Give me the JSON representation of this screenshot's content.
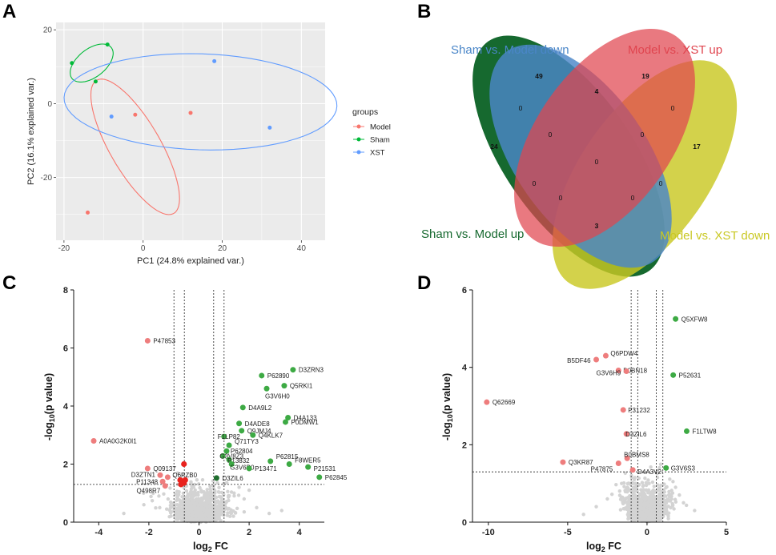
{
  "panels": {
    "a": "A",
    "b": "B",
    "c": "C",
    "d": "D"
  },
  "colors": {
    "model": "#F8766D",
    "sham": "#00BA38",
    "xst": "#619CFF",
    "venn_blue": "#4A86C8",
    "venn_red": "#E0454F",
    "venn_dkgreen": "#16692F",
    "venn_yellow": "#C9C823",
    "sig_up": "#3DAA44",
    "sig_down": "#EE7D7D",
    "sig_dkgreen": "#1F6E2E",
    "sig_red": "#E8231E",
    "nonsig": "#D3D3D3",
    "pca_bg": "#EBEBEB"
  },
  "chart_data": [
    {
      "id": "pca",
      "type": "scatter",
      "xlabel": "PC1 (24.8% explained var.)",
      "ylabel": "PC2 (16.1% explained var.)",
      "xlim": [
        -22,
        46
      ],
      "ylim": [
        -37,
        22
      ],
      "xticks": [
        -20,
        0,
        20,
        40
      ],
      "yticks": [
        -20,
        0,
        20
      ],
      "legend_title": "groups",
      "legend_position": "right",
      "grid": true,
      "series": [
        {
          "name": "Model",
          "points": [
            [
              -14,
              -29.5
            ],
            [
              -2,
              -3
            ],
            [
              12,
              -2.5
            ]
          ],
          "ellipse": {
            "cx": -2,
            "cy": -11.7,
            "rx": 20.5,
            "ry": 6.5,
            "angle_deg": 118
          }
        },
        {
          "name": "Sham",
          "points": [
            [
              -18,
              11
            ],
            [
              -9,
              16
            ],
            [
              -12,
              6
            ]
          ],
          "ellipse": {
            "cx": -13,
            "cy": 11,
            "rx": 6.5,
            "ry": 3.7,
            "angle_deg": 42
          }
        },
        {
          "name": "XST",
          "points": [
            [
              -8,
              -3.5
            ],
            [
              18,
              11.5
            ],
            [
              32,
              -6.5
            ]
          ],
          "ellipse": {
            "cx": 14.5,
            "cy": 0.5,
            "rx": 34.5,
            "ry": 13,
            "angle_deg": -2
          }
        }
      ]
    },
    {
      "id": "venn",
      "type": "venn",
      "sets": [
        "Sham vs. Model down",
        "Model vs. XST up",
        "Sham vs. Model up",
        "Model vs. XST down"
      ],
      "counts": [
        {
          "value": "49",
          "bold": true
        },
        {
          "value": "19",
          "bold": true
        },
        {
          "value": "24",
          "bold": true
        },
        {
          "value": "17",
          "bold": true
        },
        {
          "value": "4",
          "bold": true
        },
        {
          "value": "3",
          "bold": true
        },
        {
          "value": "0",
          "bold": false
        },
        {
          "value": "0",
          "bold": false
        },
        {
          "value": "0",
          "bold": false
        },
        {
          "value": "0",
          "bold": false
        },
        {
          "value": "0",
          "bold": false
        },
        {
          "value": "0",
          "bold": false
        },
        {
          "value": "0",
          "bold": false
        },
        {
          "value": "0",
          "bold": false
        },
        {
          "value": "0",
          "bold": false
        }
      ]
    },
    {
      "id": "volcano_c",
      "type": "scatter",
      "xlabel_main": "log",
      "xlabel_sub": "2",
      "xlabel_tail": " FC",
      "ylabel_pre": "-log",
      "ylabel_sub": "10",
      "ylabel_tail": "(p value)",
      "xlim": [
        -5,
        5
      ],
      "ylim": [
        0,
        8
      ],
      "xticks": [
        -4,
        -2,
        0,
        2,
        4
      ],
      "yticks": [
        0,
        2,
        4,
        6,
        8
      ],
      "thresholds": {
        "fc": [
          -1,
          -0.585,
          0.585,
          1
        ],
        "p": 1.3
      },
      "labeled_points": [
        {
          "label": "P47853",
          "x": -2.05,
          "y": 6.25,
          "cls": "down"
        },
        {
          "label": "A0A0G2K0I1",
          "x": -4.2,
          "y": 2.8,
          "cls": "down"
        },
        {
          "label": "Q09137",
          "x": -2.05,
          "y": 1.85,
          "cls": "down"
        },
        {
          "label": "D3ZTN1",
          "x": -1.55,
          "y": 1.62,
          "cls": "down"
        },
        {
          "label": "Q6PZB0",
          "x": -1.25,
          "y": 1.55,
          "cls": "down"
        },
        {
          "label": "P11348",
          "x": -1.45,
          "y": 1.4,
          "cls": "down"
        },
        {
          "label": "Q498R7",
          "x": -1.35,
          "y": 1.25,
          "cls": "down"
        },
        {
          "label": "D3ZRN3",
          "x": 3.75,
          "y": 5.25,
          "cls": "up"
        },
        {
          "label": "P62890",
          "x": 2.5,
          "y": 5.05,
          "cls": "up"
        },
        {
          "label": "Q5RKI1",
          "x": 3.4,
          "y": 4.7,
          "cls": "up"
        },
        {
          "label": "G3V6H0",
          "x": 2.7,
          "y": 4.6,
          "cls": "up"
        },
        {
          "label": "D4A9L2",
          "x": 1.75,
          "y": 3.95,
          "cls": "up"
        },
        {
          "label": "D4A133",
          "x": 3.55,
          "y": 3.6,
          "cls": "up"
        },
        {
          "label": "P0DMW1",
          "x": 3.45,
          "y": 3.45,
          "cls": "up"
        },
        {
          "label": "D4ADE8",
          "x": 1.6,
          "y": 3.4,
          "cls": "up"
        },
        {
          "label": "Q9JMJ4",
          "x": 1.7,
          "y": 3.15,
          "cls": "up"
        },
        {
          "label": "Q4KLK7",
          "x": 2.15,
          "y": 3.0,
          "cls": "up"
        },
        {
          "label": "F1LP82",
          "x": 1.0,
          "y": 2.95,
          "cls": "up"
        },
        {
          "label": "Q71TY3",
          "x": 1.2,
          "y": 2.65,
          "cls": "up"
        },
        {
          "label": "P62804",
          "x": 1.1,
          "y": 2.45,
          "cls": "up"
        },
        {
          "label": "G3V8Z3",
          "x": 0.95,
          "y": 2.28,
          "cls": "up"
        },
        {
          "label": "P13832",
          "x": 1.2,
          "y": 2.15,
          "cls": "up"
        },
        {
          "label": "G3V6B0",
          "x": 1.3,
          "y": 2.0,
          "cls": "up"
        },
        {
          "label": "P62815",
          "x": 2.85,
          "y": 2.1,
          "cls": "up"
        },
        {
          "label": "F8WER5",
          "x": 3.6,
          "y": 2.0,
          "cls": "up"
        },
        {
          "label": "P13471",
          "x": 2.0,
          "y": 1.85,
          "cls": "up"
        },
        {
          "label": "P21531",
          "x": 4.35,
          "y": 1.9,
          "cls": "up"
        },
        {
          "label": "P62845",
          "x": 4.8,
          "y": 1.55,
          "cls": "up"
        },
        {
          "label": "D3ZIL6",
          "x": 0.7,
          "y": 1.52,
          "cls": "dkgreen"
        }
      ]
    },
    {
      "id": "volcano_d",
      "type": "scatter",
      "xlabel_main": "log",
      "xlabel_sub": "2",
      "xlabel_tail": " FC",
      "ylabel_pre": "-log",
      "ylabel_sub": "10",
      "ylabel_tail": "(p value)",
      "xlim": [
        -11,
        5
      ],
      "ylim": [
        0,
        6
      ],
      "xticks": [
        -10,
        -5,
        0,
        5
      ],
      "yticks": [
        0,
        2,
        4,
        6
      ],
      "thresholds": {
        "fc": [
          -1,
          -0.585,
          0.585,
          1
        ],
        "p": 1.3
      },
      "labeled_points": [
        {
          "label": "Q5XFW8",
          "x": 1.8,
          "y": 5.25,
          "cls": "up"
        },
        {
          "label": "Q6PDW4",
          "x": -2.6,
          "y": 4.3,
          "cls": "down"
        },
        {
          "label": "B5DF46",
          "x": -3.2,
          "y": 4.2,
          "cls": "down"
        },
        {
          "label": "B0BN18",
          "x": -1.8,
          "y": 3.92,
          "cls": "down"
        },
        {
          "label": "G3V6H9",
          "x": -1.3,
          "y": 3.9,
          "cls": "down"
        },
        {
          "label": "P52631",
          "x": 1.65,
          "y": 3.8,
          "cls": "up"
        },
        {
          "label": "Q62669",
          "x": -10.1,
          "y": 3.1,
          "cls": "down"
        },
        {
          "label": "P31232",
          "x": -1.5,
          "y": 2.9,
          "cls": "down"
        },
        {
          "label": "F1LTW8",
          "x": 2.5,
          "y": 2.35,
          "cls": "up"
        },
        {
          "label": "D3ZIL6",
          "x": -1.3,
          "y": 2.28,
          "cls": "down"
        },
        {
          "label": "B0BMS8",
          "x": -1.25,
          "y": 1.65,
          "cls": "down"
        },
        {
          "label": "Q3KR87",
          "x": -5.3,
          "y": 1.55,
          "cls": "down"
        },
        {
          "label": "P47875",
          "x": -1.8,
          "y": 1.52,
          "cls": "down"
        },
        {
          "label": "D4A3V2",
          "x": -0.9,
          "y": 1.35,
          "cls": "down"
        },
        {
          "label": "G3V6S3",
          "x": 1.2,
          "y": 1.4,
          "cls": "up"
        }
      ]
    }
  ]
}
